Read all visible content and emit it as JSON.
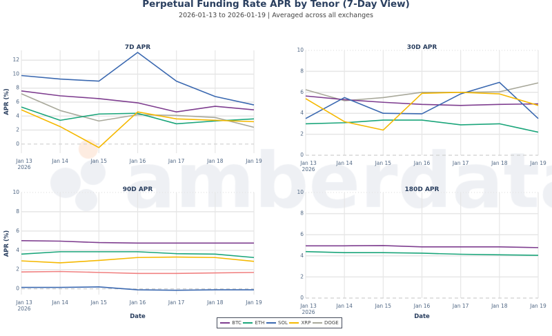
{
  "title": "Perpetual Funding Rate APR by Tenor (7-Day View)",
  "subtitle": "2026-01-13 to 2026-01-19 | Averaged across all exchanges",
  "watermark": "amberdata",
  "legend": [
    {
      "name": "BTC",
      "color": "#7e3d8f"
    },
    {
      "name": "ETH",
      "color": "#1aa57a"
    },
    {
      "name": "SOL",
      "color": "#3a68b0"
    },
    {
      "name": "XRP",
      "color": "#f5b800"
    },
    {
      "name": "DOGE",
      "color": "#a8a89a"
    }
  ],
  "chart_data": [
    {
      "type": "line",
      "title": "7D APR",
      "ylabel": "APR (%)",
      "xlabel": "",
      "categories": [
        "Jan 13\n2026",
        "Jan 14",
        "Jan 15",
        "Jan 16",
        "Jan 17",
        "Jan 18",
        "Jan 19"
      ],
      "yticks": [
        0,
        2,
        4,
        6,
        8,
        10,
        12
      ],
      "ylim": [
        -1.3,
        13.4
      ],
      "grid": true,
      "series": [
        {
          "name": "SOL",
          "color": "#3a68b0",
          "values": [
            9.8,
            9.3,
            9.0,
            13.1,
            9.0,
            6.8,
            5.6
          ]
        },
        {
          "name": "BTC",
          "color": "#7e3d8f",
          "values": [
            7.6,
            6.9,
            6.5,
            5.9,
            4.6,
            5.4,
            4.9
          ]
        },
        {
          "name": "DOGE",
          "color": "#a8a89a",
          "values": [
            7.2,
            4.8,
            3.3,
            4.2,
            4.1,
            3.8,
            2.4
          ]
        },
        {
          "name": "ETH",
          "color": "#1aa57a",
          "values": [
            5.3,
            3.4,
            4.3,
            4.4,
            2.9,
            3.3,
            3.6
          ]
        },
        {
          "name": "XRP",
          "color": "#f5b800",
          "values": [
            4.9,
            2.5,
            -0.5,
            4.6,
            3.6,
            3.4,
            3.2
          ]
        }
      ]
    },
    {
      "type": "line",
      "title": "30D APR",
      "ylabel": "",
      "xlabel": "",
      "categories": [
        "Jan 13\n2026",
        "Jan 14",
        "Jan 15",
        "Jan 16",
        "Jan 17",
        "Jan 18",
        "Jan 19"
      ],
      "yticks": [
        0,
        2,
        4,
        6,
        8,
        10
      ],
      "ylim": [
        0,
        10
      ],
      "grid": true,
      "series": [
        {
          "name": "DOGE",
          "color": "#a8a89a",
          "values": [
            6.25,
            5.2,
            5.5,
            6.0,
            6.0,
            6.05,
            6.9
          ]
        },
        {
          "name": "BTC",
          "color": "#7e3d8f",
          "values": [
            5.65,
            5.3,
            5.05,
            4.85,
            4.75,
            4.85,
            4.9
          ]
        },
        {
          "name": "ETH",
          "color": "#1aa57a",
          "values": [
            3.0,
            3.1,
            3.35,
            3.35,
            2.9,
            3.0,
            2.2
          ]
        },
        {
          "name": "SOL",
          "color": "#3a68b0",
          "values": [
            3.5,
            5.5,
            4.0,
            3.95,
            5.85,
            6.95,
            3.5
          ]
        },
        {
          "name": "XRP",
          "color": "#f5b800",
          "values": [
            5.4,
            3.2,
            2.4,
            5.9,
            6.0,
            5.85,
            4.75
          ]
        }
      ]
    },
    {
      "type": "line",
      "title": "90D APR",
      "ylabel": "APR (%)",
      "xlabel": "Date",
      "categories": [
        "Jan 13\n2026",
        "Jan 14",
        "Jan 15",
        "Jan 16",
        "Jan 17",
        "Jan 18",
        "Jan 19"
      ],
      "yticks": [
        0,
        2,
        4,
        6,
        8,
        10
      ],
      "ylim": [
        -0.6,
        10
      ],
      "grid": true,
      "series": [
        {
          "name": "BTC",
          "color": "#7e3d8f",
          "values": [
            5.0,
            4.95,
            4.8,
            4.75,
            4.75,
            4.75,
            4.75
          ]
        },
        {
          "name": "ETH",
          "color": "#1aa57a",
          "values": [
            3.6,
            3.85,
            3.85,
            3.85,
            3.65,
            3.6,
            3.25
          ]
        },
        {
          "name": "XRP",
          "color": "#f5b800",
          "values": [
            2.9,
            2.7,
            2.95,
            3.25,
            3.3,
            3.25,
            2.85
          ]
        },
        {
          "color": "#f08080",
          "values": [
            1.75,
            1.8,
            1.7,
            1.6,
            1.6,
            1.65,
            1.7
          ]
        },
        {
          "name": "SOL",
          "color": "#3a68b0",
          "values": [
            0.15,
            0.15,
            0.2,
            -0.1,
            -0.15,
            -0.1,
            -0.1
          ]
        }
      ]
    },
    {
      "type": "line",
      "title": "180D APR",
      "ylabel": "",
      "xlabel": "Date",
      "categories": [
        "Jan 13\n2026",
        "Jan 14",
        "Jan 15",
        "Jan 16",
        "Jan 17",
        "Jan 18",
        "Jan 19"
      ],
      "yticks": [
        0,
        2,
        4,
        6,
        8,
        10
      ],
      "ylim": [
        0,
        10
      ],
      "grid": true,
      "series": [
        {
          "name": "BTC",
          "color": "#7e3d8f",
          "values": [
            4.95,
            4.95,
            4.97,
            4.85,
            4.85,
            4.85,
            4.78
          ]
        },
        {
          "name": "ETH",
          "color": "#1aa57a",
          "values": [
            4.4,
            4.3,
            4.3,
            4.25,
            4.15,
            4.1,
            4.05
          ]
        }
      ]
    }
  ]
}
